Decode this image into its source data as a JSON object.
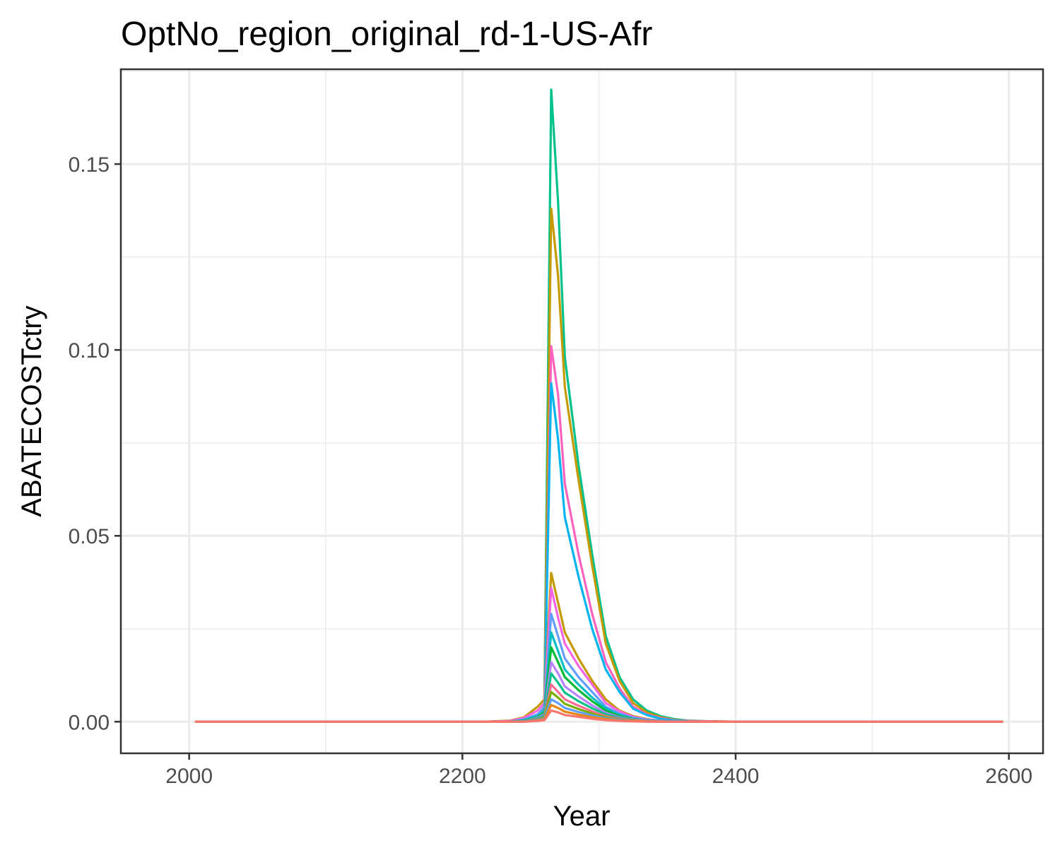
{
  "chart_data": {
    "type": "line",
    "title": "OptNo_region_original_rd-1-US-Afr",
    "xlabel": "Year",
    "ylabel": "ABATECOSTctry",
    "xlim": [
      1950,
      2625
    ],
    "ylim": [
      -0.0085,
      0.1755
    ],
    "x_ticks": [
      2000,
      2200,
      2400,
      2600
    ],
    "x_tick_labels": [
      "2000",
      "2200",
      "2400",
      "2600"
    ],
    "y_ticks": [
      0.0,
      0.05,
      0.1,
      0.15
    ],
    "y_tick_labels": [
      "0.00",
      "0.05",
      "0.10",
      "0.15"
    ],
    "grid": true,
    "legend": "none",
    "x": [
      2005,
      2215,
      2235,
      2245,
      2255,
      2260,
      2265,
      2270,
      2275,
      2285,
      2295,
      2305,
      2315,
      2325,
      2335,
      2345,
      2355,
      2365,
      2385,
      2405,
      2595
    ],
    "series": [
      {
        "color": "#00c08b",
        "values": [
          0,
          0,
          0,
          0,
          0.001,
          0.004,
          0.17,
          0.14,
          0.098,
          0.069,
          0.045,
          0.023,
          0.012,
          0.006,
          0.003,
          0.0015,
          0.0007,
          0.0003,
          0.0001,
          0,
          0
        ]
      },
      {
        "color": "#c49a00",
        "values": [
          0,
          0,
          0,
          0,
          0.001,
          0.004,
          0.138,
          0.12,
          0.09,
          0.065,
          0.042,
          0.021,
          0.011,
          0.005,
          0.0025,
          0.0012,
          0.0005,
          0.0002,
          0.0001,
          0,
          0
        ]
      },
      {
        "color": "#ff62bc",
        "values": [
          0,
          0,
          0,
          0,
          0.001,
          0.003,
          0.101,
          0.088,
          0.064,
          0.045,
          0.029,
          0.016,
          0.009,
          0.004,
          0.002,
          0.001,
          0.0004,
          0.0002,
          0.0001,
          0,
          0
        ]
      },
      {
        "color": "#00b4ef",
        "values": [
          0,
          0,
          0,
          0,
          0.001,
          0.003,
          0.091,
          0.076,
          0.055,
          0.039,
          0.025,
          0.014,
          0.008,
          0.0035,
          0.0018,
          0.0008,
          0.0003,
          0.0001,
          0,
          0,
          0
        ]
      },
      {
        "color": "#c49a00",
        "values": [
          0,
          0,
          0.0003,
          0.0012,
          0.004,
          0.006,
          0.04,
          0.032,
          0.024,
          0.017,
          0.011,
          0.006,
          0.003,
          0.0015,
          0.0007,
          0.0003,
          0.0001,
          0,
          0,
          0,
          0
        ]
      },
      {
        "color": "#f564e3",
        "values": [
          0,
          0,
          0.0002,
          0.001,
          0.003,
          0.005,
          0.036,
          0.028,
          0.021,
          0.015,
          0.01,
          0.005,
          0.0028,
          0.0013,
          0.0006,
          0.0003,
          0.0001,
          0,
          0,
          0,
          0
        ]
      },
      {
        "color": "#619cff",
        "values": [
          0,
          0,
          0,
          0.0006,
          0.002,
          0.004,
          0.029,
          0.023,
          0.017,
          0.012,
          0.008,
          0.004,
          0.0022,
          0.001,
          0.0005,
          0.0002,
          0.0001,
          0,
          0,
          0,
          0
        ]
      },
      {
        "color": "#00bfc4",
        "values": [
          0,
          0,
          0,
          0.0004,
          0.0015,
          0.003,
          0.024,
          0.019,
          0.014,
          0.01,
          0.0065,
          0.0035,
          0.0018,
          0.0008,
          0.0004,
          0.0002,
          0,
          0,
          0,
          0,
          0
        ]
      },
      {
        "color": "#00ba38",
        "values": [
          0,
          0,
          0,
          0.0003,
          0.0012,
          0.0025,
          0.02,
          0.016,
          0.012,
          0.0085,
          0.0055,
          0.003,
          0.0015,
          0.0007,
          0.0003,
          0.0001,
          0,
          0,
          0,
          0,
          0
        ]
      },
      {
        "color": "#b983ff",
        "values": [
          0,
          0,
          0,
          0.0002,
          0.001,
          0.002,
          0.016,
          0.013,
          0.0095,
          0.0068,
          0.0044,
          0.0024,
          0.0012,
          0.0006,
          0.0003,
          0.0001,
          0,
          0,
          0,
          0,
          0
        ]
      },
      {
        "color": "#00c08b",
        "values": [
          0,
          0,
          0,
          0.0002,
          0.0008,
          0.0016,
          0.013,
          0.0105,
          0.0078,
          0.0055,
          0.0036,
          0.002,
          0.001,
          0.0005,
          0.0002,
          0.0001,
          0,
          0,
          0,
          0,
          0
        ]
      },
      {
        "color": "#ff6c91",
        "values": [
          0,
          0,
          0,
          0.0001,
          0.0006,
          0.0012,
          0.01,
          0.008,
          0.006,
          0.0043,
          0.0028,
          0.0015,
          0.0008,
          0.0004,
          0.0002,
          0.0001,
          0,
          0,
          0,
          0,
          0
        ]
      },
      {
        "color": "#7cae00",
        "values": [
          0,
          0,
          0,
          0.0001,
          0.0005,
          0.001,
          0.008,
          0.0065,
          0.0048,
          0.0034,
          0.0022,
          0.0012,
          0.0006,
          0.0003,
          0.0001,
          0,
          0,
          0,
          0,
          0,
          0
        ]
      },
      {
        "color": "#619cff",
        "values": [
          0,
          0,
          0,
          0.0001,
          0.0004,
          0.0008,
          0.006,
          0.005,
          0.0037,
          0.0026,
          0.0017,
          0.0009,
          0.0005,
          0.0002,
          0.0001,
          0,
          0,
          0,
          0,
          0,
          0
        ]
      },
      {
        "color": "#e68613",
        "values": [
          0,
          0,
          0,
          0,
          0.0003,
          0.0006,
          0.0045,
          0.0037,
          0.0027,
          0.0019,
          0.0012,
          0.0007,
          0.0003,
          0.0002,
          0.0001,
          0,
          0,
          0,
          0,
          0,
          0
        ]
      },
      {
        "color": "#f8766d",
        "values": [
          0,
          0,
          0,
          0,
          0.0002,
          0.0004,
          0.003,
          0.0025,
          0.0018,
          0.0013,
          0.0008,
          0.0004,
          0.0002,
          0.0001,
          0,
          0,
          0,
          0,
          0,
          0,
          0
        ]
      }
    ]
  }
}
